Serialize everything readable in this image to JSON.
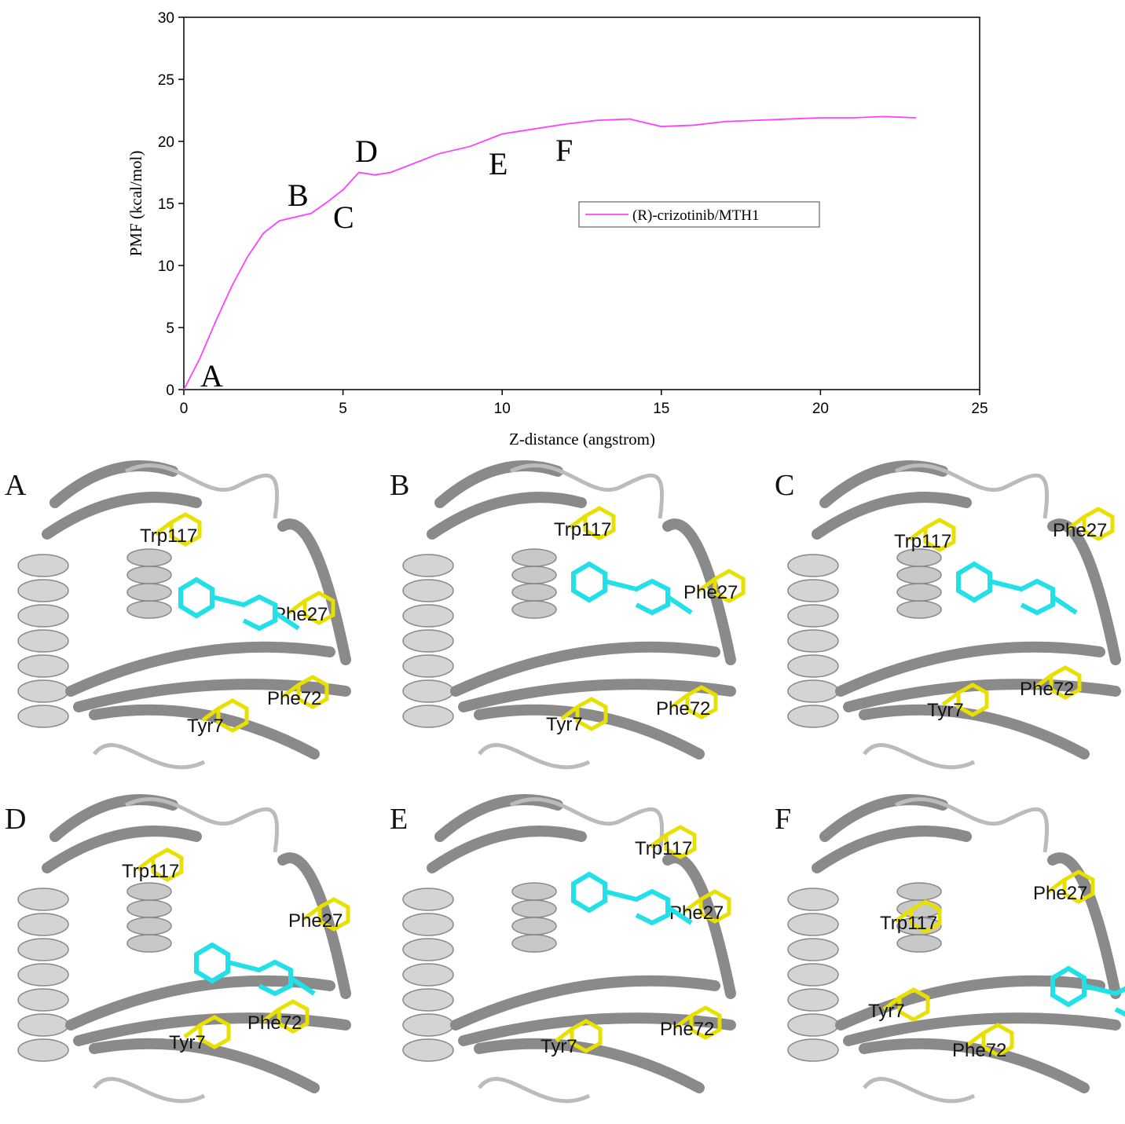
{
  "chart_data": {
    "type": "line",
    "x_label": "Z-distance (angstrom)",
    "y_label": "PMF (kcal/mol)",
    "x": [
      0,
      0.5,
      1,
      1.5,
      2,
      2.5,
      3,
      3.5,
      4,
      4.5,
      5,
      5.5,
      6,
      6.5,
      7,
      8,
      9,
      10,
      11,
      12,
      13,
      14,
      15,
      16,
      17,
      18,
      19,
      20,
      21,
      22,
      23
    ],
    "series": [
      {
        "name": "(R)-crizotinib/MTH1",
        "color": "#ff40ff",
        "values": [
          0,
          2.5,
          5.5,
          8.3,
          10.7,
          12.6,
          13.6,
          13.9,
          14.2,
          15.1,
          16.1,
          17.5,
          17.3,
          17.5,
          18.0,
          19.0,
          19.6,
          20.6,
          21.0,
          21.4,
          21.7,
          21.8,
          21.2,
          21.3,
          21.6,
          21.7,
          21.8,
          21.9,
          21.9,
          22.0,
          21.9
        ]
      }
    ],
    "xlim": [
      0,
      25
    ],
    "xticks": [
      0,
      5,
      10,
      15,
      20,
      25
    ],
    "ylim": [
      0,
      30
    ],
    "yticks": [
      0,
      5,
      10,
      15,
      20,
      25,
      30
    ],
    "annotations": [
      "A",
      "B",
      "C",
      "D",
      "E",
      "F"
    ]
  },
  "panels": [
    {
      "label": "A",
      "residues": [
        "Trp117",
        "Phe27",
        "Phe72",
        "Tyr7"
      ]
    },
    {
      "label": "B",
      "residues": [
        "Trp117",
        "Phe27",
        "Phe72",
        "Tyr7"
      ]
    },
    {
      "label": "C",
      "residues": [
        "Trp117",
        "Phe27",
        "Phe72",
        "Tyr7"
      ]
    },
    {
      "label": "D",
      "residues": [
        "Trp117",
        "Phe27",
        "Phe72",
        "Tyr7"
      ]
    },
    {
      "label": "E",
      "residues": [
        "Trp117",
        "Phe27",
        "Phe72",
        "Tyr7"
      ]
    },
    {
      "label": "F",
      "residues": [
        "Phe27",
        "Trp117",
        "Tyr7",
        "Phe72"
      ]
    }
  ]
}
